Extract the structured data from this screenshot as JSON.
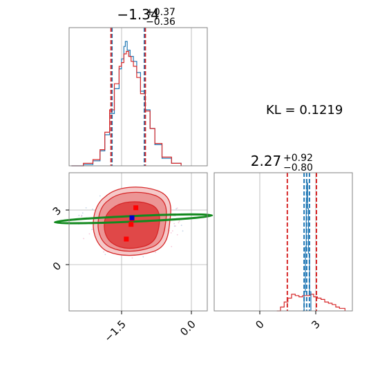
{
  "chart_data": [
    {
      "type": "histogram",
      "panel": "top-left",
      "title": {
        "value": "−1.34",
        "sup": "+0.37",
        "sub": "−0.36"
      },
      "xlim": [
        -2.6,
        0.3
      ],
      "grid": true,
      "series": [
        {
          "name": "",
          "color": "#1f77b4",
          "bin_edges": [
            -2.6,
            -1.6,
            -1.55,
            -1.5,
            -1.45,
            -1.4,
            -1.35,
            -1.3,
            -1.25,
            -1.2,
            -1.15,
            -1.1,
            -1.05,
            -1.0,
            0.3
          ],
          "profile": [
            [
              -2.55,
              0.0
            ],
            [
              -2.3,
              0.01
            ],
            [
              -2.1,
              0.04
            ],
            [
              -1.95,
              0.12
            ],
            [
              -1.85,
              0.25
            ],
            [
              -1.75,
              0.42
            ],
            [
              -1.65,
              0.62
            ],
            [
              -1.55,
              0.78
            ],
            [
              -1.5,
              0.86
            ],
            [
              -1.45,
              0.96
            ],
            [
              -1.42,
              1.0
            ],
            [
              -1.38,
              0.93
            ],
            [
              -1.32,
              0.88
            ],
            [
              -1.25,
              0.84
            ],
            [
              -1.18,
              0.75
            ],
            [
              -1.1,
              0.6
            ],
            [
              -1.0,
              0.45
            ],
            [
              -0.9,
              0.3
            ],
            [
              -0.8,
              0.17
            ],
            [
              -0.65,
              0.06
            ],
            [
              -0.45,
              0.02
            ],
            [
              -0.25,
              0.0
            ]
          ]
        },
        {
          "name": "",
          "color": "#d62728",
          "profile": [
            [
              -2.55,
              0.0
            ],
            [
              -2.3,
              0.02
            ],
            [
              -2.1,
              0.05
            ],
            [
              -1.95,
              0.13
            ],
            [
              -1.85,
              0.27
            ],
            [
              -1.75,
              0.45
            ],
            [
              -1.65,
              0.66
            ],
            [
              -1.55,
              0.8
            ],
            [
              -1.5,
              0.83
            ],
            [
              -1.45,
              0.9
            ],
            [
              -1.4,
              0.92
            ],
            [
              -1.35,
              0.88
            ],
            [
              -1.3,
              0.84
            ],
            [
              -1.25,
              0.8
            ],
            [
              -1.18,
              0.71
            ],
            [
              -1.1,
              0.58
            ],
            [
              -1.0,
              0.44
            ],
            [
              -0.9,
              0.3
            ],
            [
              -0.8,
              0.18
            ],
            [
              -0.65,
              0.07
            ],
            [
              -0.45,
              0.02
            ],
            [
              -0.25,
              0.0
            ]
          ]
        }
      ],
      "quantile_lines": [
        {
          "color": "#1f77b4",
          "values": [
            -1.7,
            -1.02
          ]
        },
        {
          "color": "#d62728",
          "values": [
            -1.72,
            -1.0
          ]
        }
      ]
    },
    {
      "type": "scatter-contour",
      "panel": "bottom-left",
      "xlim": [
        -2.6,
        0.3
      ],
      "ylim": [
        -2.5,
        5.0
      ],
      "xticks": [
        -1.5,
        0.0
      ],
      "xtick_labels": [
        "−1.5",
        "0.0"
      ],
      "yticks": [
        0,
        3
      ],
      "ytick_labels": [
        "0",
        "3"
      ],
      "grid": true,
      "contour_color": "#d62728",
      "contour_fill_levels": [
        "#f5c9c9",
        "#ec9595",
        "#e04848",
        "#d62728"
      ],
      "ellipse": {
        "color": "#138a1f",
        "center": [
          -1.25,
          2.5
        ],
        "semi_major": 1.65,
        "semi_minor": 0.06,
        "angle_deg": -2.5
      },
      "markers": [
        {
          "color": "#ff0000",
          "x": -1.2,
          "y": 3.1
        },
        {
          "color": "#ff0000",
          "x": -1.3,
          "y": 2.2
        },
        {
          "color": "#ff0000",
          "x": -1.4,
          "y": 1.4
        },
        {
          "color": "#ff0000",
          "x": -1.28,
          "y": 2.5
        },
        {
          "color": "#0000cc",
          "x": -1.28,
          "y": 2.55
        }
      ]
    },
    {
      "type": "histogram",
      "panel": "bottom-right",
      "title": {
        "value": "2.27",
        "sup": "+0.92",
        "sub": "−0.80"
      },
      "xlim": [
        -2.5,
        5.0
      ],
      "xticks": [
        0,
        3
      ],
      "xtick_labels": [
        "0",
        "3"
      ],
      "grid": true,
      "series": [
        {
          "name": "",
          "color": "#d62728",
          "profile": [
            [
              0.9,
              0.0
            ],
            [
              1.1,
              0.03
            ],
            [
              1.3,
              0.07
            ],
            [
              1.5,
              0.1
            ],
            [
              1.7,
              0.13
            ],
            [
              1.9,
              0.12
            ],
            [
              2.1,
              0.11
            ],
            [
              2.3,
              0.12
            ],
            [
              2.5,
              0.12
            ],
            [
              2.7,
              0.13
            ],
            [
              2.9,
              0.11
            ],
            [
              3.1,
              0.1
            ],
            [
              3.3,
              0.09
            ],
            [
              3.5,
              0.07
            ],
            [
              3.7,
              0.06
            ],
            [
              3.9,
              0.05
            ],
            [
              4.1,
              0.03
            ],
            [
              4.3,
              0.02
            ],
            [
              4.6,
              0.0
            ]
          ]
        },
        {
          "name": "",
          "color": "#1f77b4",
          "profile": [
            [
              2.3,
              0.0
            ],
            [
              2.38,
              0.15
            ],
            [
              2.45,
              0.5
            ],
            [
              2.5,
              0.85
            ],
            [
              2.53,
              1.0
            ],
            [
              2.57,
              0.8
            ],
            [
              2.62,
              0.45
            ],
            [
              2.68,
              0.15
            ],
            [
              2.75,
              0.0
            ]
          ]
        }
      ],
      "quantile_lines": [
        {
          "color": "#d62728",
          "values": [
            1.47,
            3.05
          ]
        },
        {
          "color": "#1f77b4",
          "values": [
            2.38,
            2.52,
            2.67
          ]
        }
      ]
    }
  ],
  "annotation": {
    "label": "KL = 0.1219"
  }
}
